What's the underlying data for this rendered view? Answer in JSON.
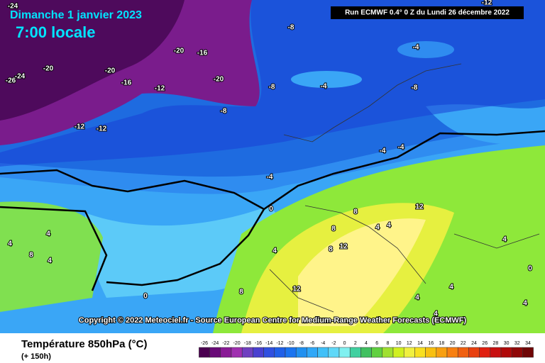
{
  "header": {
    "date": "Dimanche 1 janvier 2023",
    "time": "7:00 locale",
    "run": "Run ECMWF 0.4° 0 Z du Lundi 26 décembre 2022"
  },
  "map": {
    "contour_labels": [
      -24,
      -26,
      -24,
      -20,
      -20,
      -16,
      -12,
      -20,
      -16,
      -20,
      -12,
      -12,
      -8,
      -8,
      -8,
      -4,
      -4,
      -8,
      -12,
      -4,
      -4,
      -4,
      0,
      0,
      4,
      4,
      4,
      8,
      4,
      8,
      8,
      8,
      12,
      8,
      12,
      4,
      4,
      12,
      4,
      4,
      4,
      0,
      4,
      4
    ]
  },
  "copyright": "Copyright © 2022 Meteociel.fr - Source European Centre for Medium-Range Weather Forecasts (ECMWF)",
  "legend": {
    "title": "Température 850hPa (°C)",
    "lead_time": "(+ 150h)",
    "ticks": [
      -26,
      -24,
      -22,
      -20,
      -18,
      -16,
      -14,
      -12,
      -10,
      -8,
      -6,
      -4,
      -2,
      0,
      2,
      4,
      6,
      8,
      10,
      12,
      14,
      16,
      18,
      20,
      22,
      24,
      26,
      28,
      30,
      32,
      34
    ],
    "colors": [
      "#4b0050",
      "#6a0a78",
      "#8a1a96",
      "#a030b0",
      "#7040c0",
      "#4a40d0",
      "#3050e0",
      "#2060e8",
      "#1a74f0",
      "#2090f0",
      "#30a8f8",
      "#40c0f8",
      "#60d8f8",
      "#80f0f0",
      "#40d0a0",
      "#40c060",
      "#60d040",
      "#a0e030",
      "#d0f020",
      "#f0f040",
      "#f8e020",
      "#f8c010",
      "#f8a010",
      "#f88010",
      "#f06010",
      "#e84010",
      "#e02010",
      "#c81010",
      "#b00a0a",
      "#900808",
      "#700606"
    ]
  }
}
